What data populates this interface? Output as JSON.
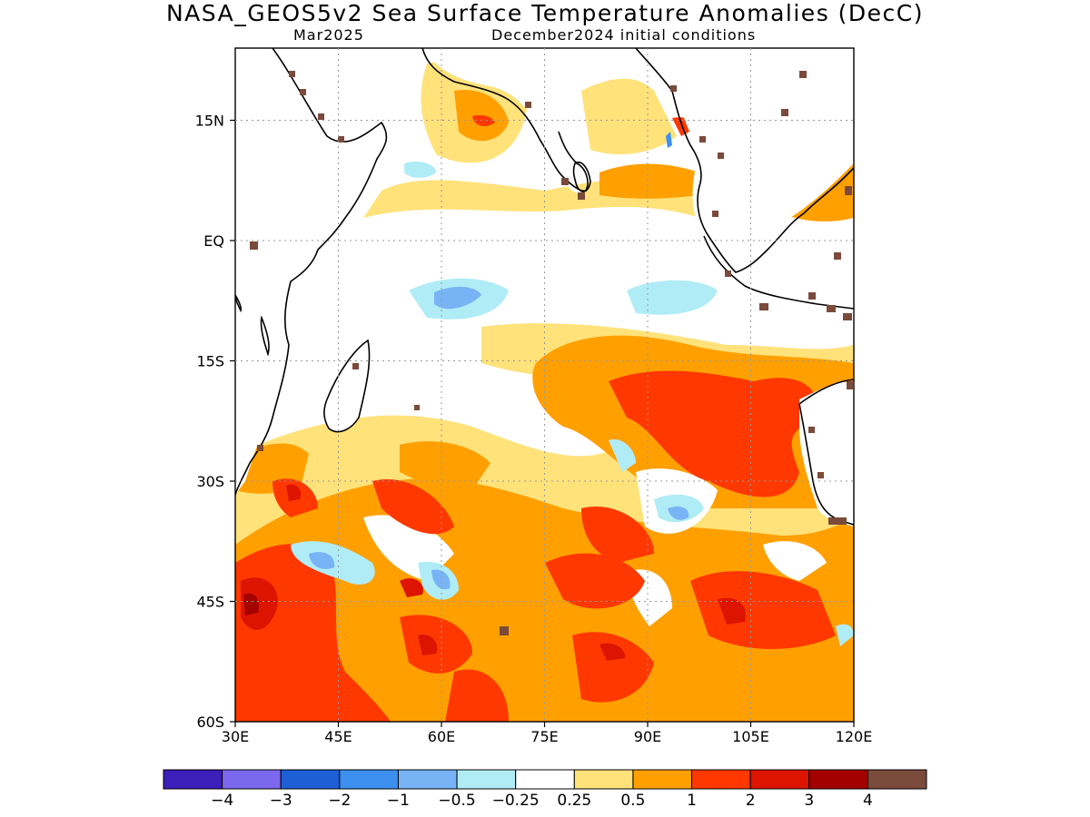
{
  "header": {
    "title": "NASA_GEOS5v2 Sea Surface Temperature Anomalies (DecC)",
    "subtitle_left": "Mar2025",
    "subtitle_right": "December2024 initial conditions"
  },
  "map": {
    "lon_labels": [
      "30E",
      "45E",
      "60E",
      "75E",
      "90E",
      "105E",
      "120E"
    ],
    "lat_labels": [
      "15N",
      "EQ",
      "15S",
      "30S",
      "45S",
      "60S"
    ],
    "lon_range": [
      30,
      120
    ],
    "lat_range": [
      -60,
      24
    ],
    "grid": "dotted"
  },
  "colorbar": {
    "colors": [
      "#3a1fb8",
      "#7b68ee",
      "#1e5fd6",
      "#3d8ff0",
      "#78b4f5",
      "#b0ecf6",
      "#ffffff",
      "#ffe27a",
      "#ffa000",
      "#ff3800",
      "#dd1400",
      "#a50000",
      "#7a4a3a"
    ],
    "labels": [
      "-4",
      "-3",
      "-2",
      "-1",
      "-0.5",
      "-0.25",
      "0.25",
      "0.5",
      "1",
      "2",
      "3",
      "4"
    ]
  }
}
